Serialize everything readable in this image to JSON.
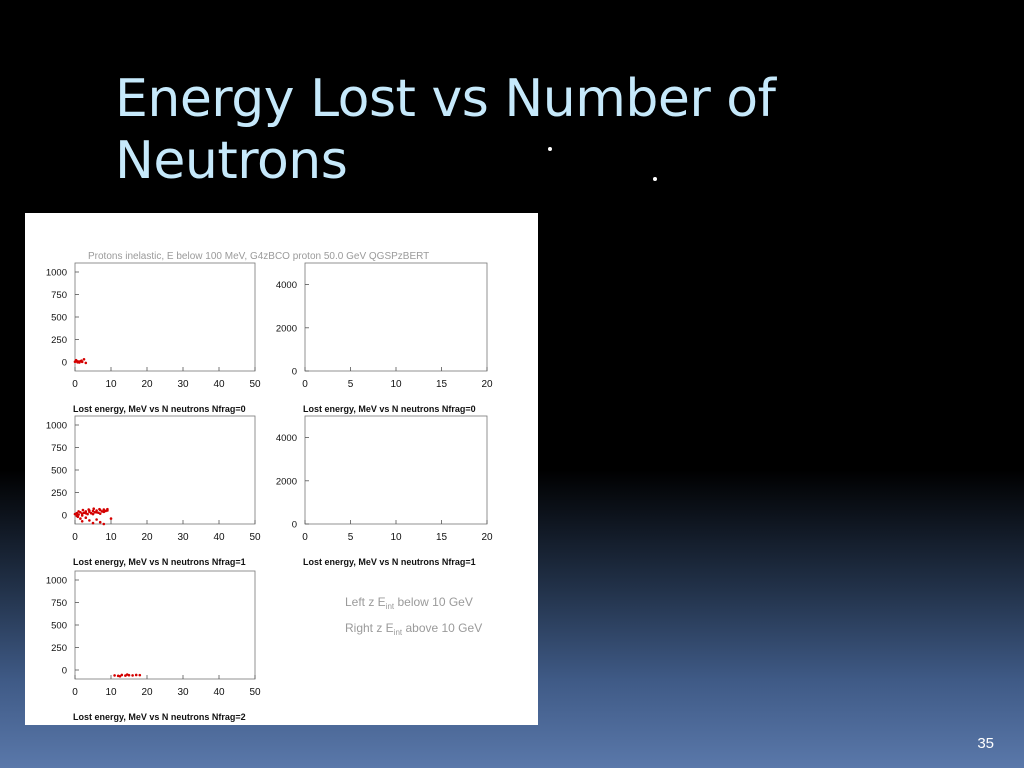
{
  "slide": {
    "title_line1": "Energy Lost vs Number of",
    "title_line2": "Neutrons",
    "page_number": "35"
  },
  "figure": {
    "header": "Protons inelastic, E below 100 MeV,  G4zBCO proton 50.0 GeV QGSPzBERT",
    "annotation_left": {
      "prefix": "Left  z E",
      "sub": "int",
      "suffix": " below 10 GeV"
    },
    "annotation_right": {
      "prefix": "Right z E",
      "sub": "int",
      "suffix": " above 10 GeV"
    }
  },
  "chart_data": [
    {
      "type": "scatter",
      "title": "Lost energy, MeV vs N neutrons Nfrag=0",
      "xlim": [
        0,
        50
      ],
      "ylim": [
        -100,
        1100
      ],
      "x_ticks": [
        "0",
        "10",
        "20",
        "30",
        "40",
        "50"
      ],
      "y_ticks": [
        "0",
        "250",
        "500",
        "750",
        "1000"
      ],
      "points": [
        [
          0,
          3
        ],
        [
          0.5,
          10
        ],
        [
          1,
          5
        ],
        [
          1.5,
          8
        ],
        [
          2,
          2
        ],
        [
          0.3,
          20
        ],
        [
          1.2,
          -5
        ],
        [
          2.5,
          30
        ],
        [
          3,
          -10
        ],
        [
          1.8,
          15
        ],
        [
          0.7,
          -3
        ]
      ],
      "marker_color": "#d40000"
    },
    {
      "type": "scatter",
      "title": "Lost energy, MeV vs N neutrons Nfrag=0",
      "xlim": [
        0,
        20
      ],
      "ylim": [
        0,
        5000
      ],
      "x_ticks": [
        "0",
        "5",
        "10",
        "15",
        "20"
      ],
      "y_ticks": [
        "0",
        "2000",
        "4000"
      ],
      "points": [],
      "marker_color": "#d40000"
    },
    {
      "type": "scatter",
      "title": "Lost energy, MeV vs N neutrons Nfrag=1",
      "xlim": [
        0,
        50
      ],
      "ylim": [
        -100,
        1100
      ],
      "x_ticks": [
        "0",
        "10",
        "20",
        "30",
        "40",
        "50"
      ],
      "y_ticks": [
        "0",
        "250",
        "500",
        "750",
        "1000"
      ],
      "points": [
        [
          0,
          10
        ],
        [
          0.5,
          20
        ],
        [
          1,
          5
        ],
        [
          1.5,
          30
        ],
        [
          2,
          15
        ],
        [
          2.5,
          25
        ],
        [
          3,
          40
        ],
        [
          3.5,
          10
        ],
        [
          4,
          35
        ],
        [
          4.5,
          20
        ],
        [
          5,
          45
        ],
        [
          5.5,
          30
        ],
        [
          6,
          50
        ],
        [
          6.5,
          25
        ],
        [
          7,
          55
        ],
        [
          7.5,
          40
        ],
        [
          8,
          60
        ],
        [
          8.5,
          45
        ],
        [
          9,
          65
        ],
        [
          0.5,
          -10
        ],
        [
          1,
          40
        ],
        [
          2,
          -5
        ],
        [
          3,
          20
        ],
        [
          4,
          50
        ],
        [
          5,
          10
        ],
        [
          6,
          30
        ],
        [
          7,
          15
        ],
        [
          8,
          35
        ],
        [
          9,
          50
        ],
        [
          1.5,
          -40
        ],
        [
          2,
          -70
        ],
        [
          3,
          -30
        ],
        [
          4,
          -60
        ],
        [
          5,
          -90
        ],
        [
          6,
          -50
        ],
        [
          7,
          -80
        ],
        [
          8,
          -100
        ],
        [
          10,
          -40
        ],
        [
          0.8,
          -20
        ],
        [
          2.2,
          55
        ],
        [
          3.8,
          60
        ],
        [
          5.2,
          70
        ],
        [
          6.8,
          65
        ]
      ],
      "marker_color": "#d40000"
    },
    {
      "type": "scatter",
      "title": "Lost energy, MeV vs N neutrons Nfrag=1",
      "xlim": [
        0,
        20
      ],
      "ylim": [
        0,
        5000
      ],
      "x_ticks": [
        "0",
        "5",
        "10",
        "15",
        "20"
      ],
      "y_ticks": [
        "0",
        "2000",
        "4000"
      ],
      "points": [],
      "marker_color": "#d40000"
    },
    {
      "type": "scatter",
      "title": "Lost energy, MeV vs N neutrons Nfrag=2",
      "xlim": [
        0,
        50
      ],
      "ylim": [
        -100,
        1100
      ],
      "x_ticks": [
        "0",
        "10",
        "20",
        "30",
        "40",
        "50"
      ],
      "y_ticks": [
        "0",
        "250",
        "500",
        "750",
        "1000"
      ],
      "points": [
        [
          11,
          -60
        ],
        [
          12,
          -65
        ],
        [
          13,
          -55
        ],
        [
          14,
          -62
        ],
        [
          15,
          -58
        ],
        [
          16,
          -60
        ],
        [
          17,
          -55
        ],
        [
          12.5,
          -70
        ],
        [
          14.5,
          -50
        ],
        [
          18,
          -57
        ]
      ],
      "marker_color": "#d40000"
    }
  ]
}
